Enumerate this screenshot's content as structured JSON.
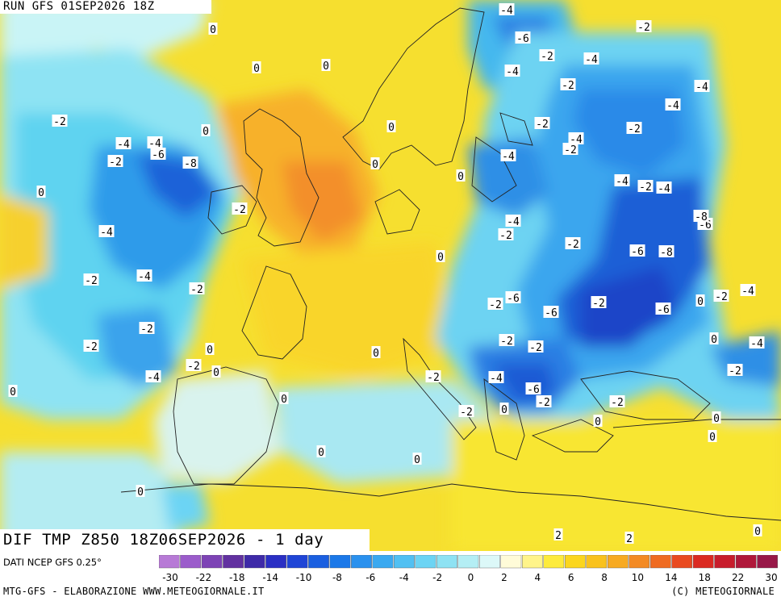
{
  "header": {
    "run_title": "RUN GFS 01SEP2026 18Z"
  },
  "map_title": "DIF TMP Z850 18Z06SEP2026 - 1 day",
  "footer": {
    "data_source": "DATI NCEP GFS 0.25°",
    "credits_left": "MTG-GFS - ELABORAZIONE WWW.METEOGIORNALE.IT",
    "credits_right": "(C) METEOGIORNALE"
  },
  "colors": {
    "sea_background": "#f2e84a",
    "neutral_light": "#e8fbfb",
    "cold_light": "#5fd7ef",
    "cold_mid": "#2a8fe6",
    "cold_deep": "#1d4fd1",
    "warm_mid": "#f7c12a",
    "warm_orange": "#f29a2a",
    "coastline": "#222222"
  },
  "scale": {
    "colors": [
      "#b77ad6",
      "#9b5ccb",
      "#7d43b5",
      "#6231a0",
      "#3e2aa8",
      "#2a2fc4",
      "#1f45d6",
      "#1a5fe0",
      "#1b78e8",
      "#2a91ee",
      "#3aa9f0",
      "#51c0f2",
      "#6cd4f4",
      "#8ee2f3",
      "#b4eef4",
      "#dcf8f8",
      "#fffbd8",
      "#fff48a",
      "#fdeb3c",
      "#fbd61e",
      "#f9c21d",
      "#f7aa22",
      "#f38a24",
      "#ef6b22",
      "#e94a20",
      "#db2a22",
      "#c81d2c",
      "#b0183a",
      "#981848"
    ],
    "labels": [
      "-30",
      "-22",
      "-18",
      "-14",
      "-10",
      "-8",
      "-6",
      "-4",
      "-2",
      "0",
      "2",
      "4",
      "6",
      "8",
      "10",
      "14",
      "18",
      "22",
      "30"
    ]
  },
  "contour_labels": [
    {
      "text": "-4"
    },
    {
      "text": "-6"
    },
    {
      "text": "-2"
    },
    {
      "text": "-4"
    },
    {
      "text": "-2"
    },
    {
      "text": "-4"
    },
    {
      "text": "0"
    },
    {
      "text": "0"
    },
    {
      "text": "0"
    },
    {
      "text": "-2"
    },
    {
      "text": "-4"
    },
    {
      "text": "-4"
    },
    {
      "text": "-6"
    },
    {
      "text": "-8"
    },
    {
      "text": "-2"
    },
    {
      "text": "0"
    },
    {
      "text": "-4"
    },
    {
      "text": "-2"
    },
    {
      "text": "-4"
    },
    {
      "text": "-2"
    },
    {
      "text": "-4"
    },
    {
      "text": "-4"
    },
    {
      "text": "-2"
    },
    {
      "text": "-4"
    },
    {
      "text": "-2"
    },
    {
      "text": "0"
    },
    {
      "text": "0"
    },
    {
      "text": "0"
    },
    {
      "text": "0"
    },
    {
      "text": "-2"
    },
    {
      "text": "-4"
    },
    {
      "text": "-2"
    },
    {
      "text": "-6"
    },
    {
      "text": "-8"
    },
    {
      "text": "-2"
    },
    {
      "text": "-4"
    },
    {
      "text": "-4"
    },
    {
      "text": "-2"
    },
    {
      "text": "-2"
    },
    {
      "text": "-6"
    },
    {
      "text": "0"
    },
    {
      "text": "-8"
    },
    {
      "text": "-6"
    },
    {
      "text": "-4"
    },
    {
      "text": "-2"
    },
    {
      "text": "-2"
    },
    {
      "text": "-6"
    },
    {
      "text": "-2"
    },
    {
      "text": "-2"
    },
    {
      "text": "0"
    },
    {
      "text": "-4"
    },
    {
      "text": "-6"
    },
    {
      "text": "-2"
    },
    {
      "text": "-2"
    },
    {
      "text": "-2"
    },
    {
      "text": "0"
    },
    {
      "text": "0"
    },
    {
      "text": "-4"
    },
    {
      "text": "-2"
    },
    {
      "text": "-2"
    },
    {
      "text": "0"
    },
    {
      "text": "0"
    },
    {
      "text": "2"
    },
    {
      "text": "2"
    },
    {
      "text": "0"
    },
    {
      "text": "0"
    },
    {
      "text": "0"
    },
    {
      "text": "0"
    },
    {
      "text": "0"
    },
    {
      "text": "0"
    },
    {
      "text": "-2"
    },
    {
      "text": "-2"
    },
    {
      "text": "-2"
    },
    {
      "text": "0"
    },
    {
      "text": "0"
    },
    {
      "text": "0"
    },
    {
      "text": "-4"
    },
    {
      "text": "-6"
    },
    {
      "text": "-4"
    },
    {
      "text": "-2"
    },
    {
      "text": "0"
    },
    {
      "text": "-2"
    }
  ]
}
